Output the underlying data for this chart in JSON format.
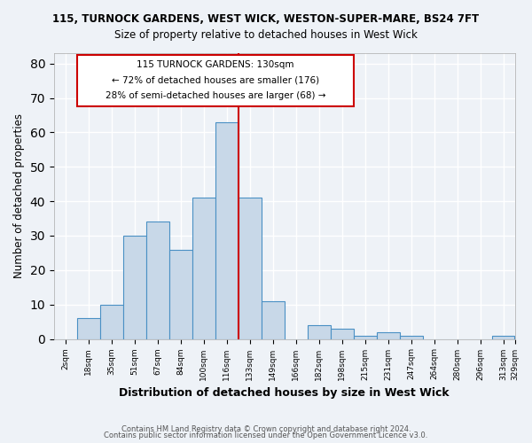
{
  "title1": "115, TURNOCK GARDENS, WEST WICK, WESTON-SUPER-MARE, BS24 7FT",
  "title2": "Size of property relative to detached houses in West Wick",
  "xlabel": "Distribution of detached houses by size in West Wick",
  "ylabel": "Number of detached properties",
  "bin_labels": [
    "2sqm",
    "18sqm",
    "35sqm",
    "51sqm",
    "67sqm",
    "84sqm",
    "100sqm",
    "116sqm",
    "133sqm",
    "149sqm",
    "166sqm",
    "182sqm",
    "198sqm",
    "215sqm",
    "231sqm",
    "247sqm",
    "264sqm",
    "280sqm",
    "296sqm",
    "313sqm",
    "329sqm"
  ],
  "bar_heights": [
    0,
    6,
    10,
    30,
    34,
    26,
    41,
    63,
    41,
    11,
    0,
    4,
    3,
    1,
    2,
    1,
    0,
    0,
    0,
    1
  ],
  "bar_color": "#c8d8e8",
  "bar_edge_color": "#4a90c4",
  "bar_edge_width": 0.8,
  "vline_x_index": 8,
  "vline_color": "#cc0000",
  "annotation_text1": "115 TURNOCK GARDENS: 130sqm",
  "annotation_text2": "← 72% of detached houses are smaller (176)",
  "annotation_text3": "28% of semi-detached houses are larger (68) →",
  "annotation_box_color": "#cc0000",
  "annotation_fill": "#ffffff",
  "ylim": [
    0,
    83
  ],
  "yticks": [
    0,
    10,
    20,
    30,
    40,
    50,
    60,
    70,
    80
  ],
  "footer1": "Contains HM Land Registry data © Crown copyright and database right 2024.",
  "footer2": "Contains public sector information licensed under the Open Government Licence v3.0.",
  "bg_color": "#eef2f7",
  "grid_color": "#ffffff"
}
